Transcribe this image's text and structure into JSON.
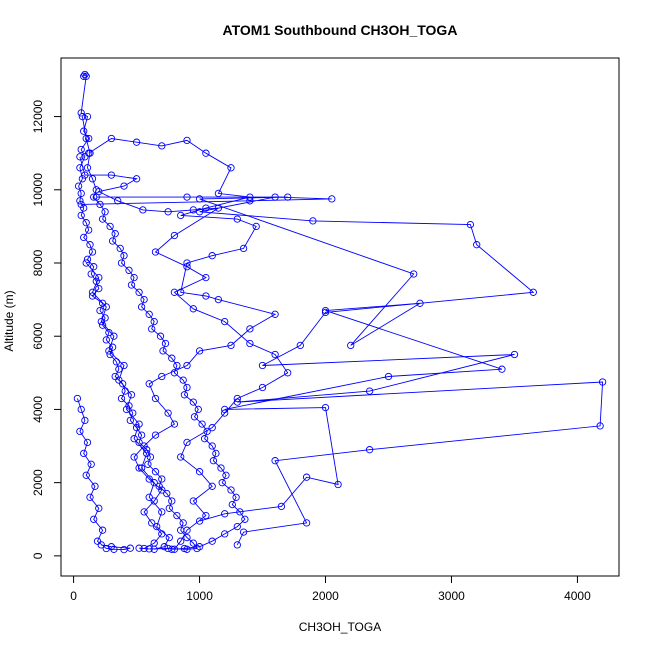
{
  "chart_data": {
    "type": "scatter",
    "title": "ATOM1 Southbound CH3OH_TOGA",
    "xlabel": "CH3OH_TOGA",
    "ylabel": "Altitude (m)",
    "xlim": [
      -100,
      4330
    ],
    "ylim": [
      -550,
      13600
    ],
    "xticks": [
      0,
      1000,
      2000,
      3000,
      4000
    ],
    "yticks": [
      0,
      2000,
      4000,
      6000,
      8000,
      10000,
      12000
    ],
    "xtick_labels": [
      "0",
      "1000",
      "2000",
      "3000",
      "4000"
    ],
    "ytick_labels": [
      "0",
      "2000",
      "4000",
      "6000",
      "8000",
      "10000",
      "12000"
    ],
    "marker": "open-circle",
    "line": true,
    "color": "#0000ff",
    "series": [
      {
        "points": [
          [
            80,
            13100
          ],
          [
            90,
            13150
          ],
          [
            100,
            13100
          ],
          [
            60,
            12100
          ],
          [
            110,
            12000
          ],
          [
            80,
            11600
          ],
          [
            120,
            11400
          ],
          [
            60,
            11100
          ],
          [
            90,
            10900
          ],
          [
            50,
            10600
          ],
          [
            70,
            10300
          ],
          [
            40,
            10100
          ],
          [
            60,
            9900
          ],
          [
            50,
            9700
          ],
          [
            80,
            9500
          ],
          [
            60,
            9300
          ],
          [
            100,
            9100
          ],
          [
            120,
            8900
          ],
          [
            80,
            8700
          ],
          [
            130,
            8500
          ],
          [
            150,
            8300
          ],
          [
            110,
            8100
          ],
          [
            160,
            7900
          ],
          [
            140,
            7700
          ],
          [
            180,
            7500
          ],
          [
            200,
            7300
          ],
          [
            150,
            7100
          ],
          [
            230,
            6900
          ],
          [
            210,
            6700
          ],
          [
            250,
            6500
          ],
          [
            230,
            6300
          ],
          [
            280,
            6100
          ],
          [
            260,
            5900
          ],
          [
            310,
            5700
          ],
          [
            290,
            5500
          ],
          [
            340,
            5300
          ],
          [
            360,
            5100
          ],
          [
            330,
            4900
          ],
          [
            390,
            4700
          ],
          [
            410,
            4500
          ],
          [
            380,
            4300
          ],
          [
            440,
            4100
          ],
          [
            470,
            3900
          ],
          [
            450,
            3700
          ],
          [
            500,
            3500
          ],
          [
            540,
            3300
          ],
          [
            520,
            3100
          ],
          [
            580,
            2900
          ],
          [
            610,
            2700
          ],
          [
            590,
            2500
          ],
          [
            650,
            2300
          ],
          [
            700,
            2100
          ],
          [
            680,
            1900
          ],
          [
            740,
            1700
          ],
          [
            780,
            1500
          ],
          [
            760,
            1300
          ],
          [
            820,
            1100
          ],
          [
            870,
            900
          ],
          [
            850,
            700
          ],
          [
            900,
            500
          ],
          [
            950,
            350
          ],
          [
            980,
            200
          ],
          [
            900,
            180
          ],
          [
            750,
            200
          ],
          [
            600,
            190
          ],
          [
            520,
            210
          ]
        ]
      },
      {
        "points": [
          [
            70,
            12000
          ],
          [
            100,
            11400
          ],
          [
            130,
            11000
          ],
          [
            110,
            10600
          ],
          [
            150,
            10300
          ],
          [
            180,
            10000
          ],
          [
            160,
            9800
          ],
          [
            210,
            9600
          ],
          [
            250,
            9400
          ],
          [
            230,
            9200
          ],
          [
            290,
            9000
          ],
          [
            330,
            8800
          ],
          [
            310,
            8600
          ],
          [
            370,
            8400
          ],
          [
            400,
            8200
          ],
          [
            380,
            8000
          ],
          [
            440,
            7800
          ],
          [
            480,
            7600
          ],
          [
            460,
            7400
          ],
          [
            520,
            7200
          ],
          [
            560,
            7000
          ],
          [
            540,
            6800
          ],
          [
            600,
            6600
          ],
          [
            640,
            6400
          ],
          [
            620,
            6200
          ],
          [
            690,
            6000
          ],
          [
            730,
            5800
          ],
          [
            710,
            5600
          ],
          [
            780,
            5400
          ],
          [
            820,
            5200
          ],
          [
            800,
            5000
          ],
          [
            870,
            4800
          ],
          [
            900,
            4600
          ],
          [
            880,
            4400
          ],
          [
            950,
            4200
          ],
          [
            990,
            4000
          ],
          [
            960,
            3800
          ],
          [
            1020,
            3600
          ],
          [
            1060,
            3400
          ],
          [
            1040,
            3200
          ],
          [
            1100,
            3000
          ],
          [
            1130,
            2800
          ],
          [
            1110,
            2600
          ],
          [
            1170,
            2400
          ],
          [
            1210,
            2200
          ],
          [
            1180,
            2000
          ],
          [
            1250,
            1800
          ],
          [
            1290,
            1600
          ],
          [
            1260,
            1400
          ],
          [
            1320,
            1200
          ],
          [
            1360,
            1000
          ],
          [
            1300,
            800
          ],
          [
            1200,
            600
          ],
          [
            1100,
            400
          ],
          [
            1000,
            250
          ],
          [
            880,
            200
          ],
          [
            780,
            180
          ]
        ]
      },
      {
        "points": [
          [
            60,
            9600
          ],
          [
            1400,
            9700
          ],
          [
            2050,
            9750
          ],
          [
            1600,
            9800
          ],
          [
            1000,
            9400
          ],
          [
            1900,
            9150
          ],
          [
            3150,
            9050
          ],
          [
            3200,
            8500
          ],
          [
            3650,
            7200
          ],
          [
            2000,
            6650
          ],
          [
            1800,
            5750
          ],
          [
            1500,
            5200
          ],
          [
            3500,
            5500
          ],
          [
            2350,
            4500
          ],
          [
            1300,
            4200
          ],
          [
            4200,
            4750
          ],
          [
            4180,
            3550
          ],
          [
            2350,
            2900
          ],
          [
            1600,
            2600
          ],
          [
            1850,
            900
          ],
          [
            1350,
            650
          ],
          [
            1300,
            300
          ]
        ]
      },
      {
        "points": [
          [
            180,
            9800
          ],
          [
            900,
            9800
          ],
          [
            1700,
            9800
          ],
          [
            1000,
            9750
          ],
          [
            2700,
            7700
          ],
          [
            2200,
            5750
          ],
          [
            2750,
            6900
          ],
          [
            2000,
            6700
          ],
          [
            3400,
            5100
          ],
          [
            2500,
            4900
          ],
          [
            1200,
            4000
          ],
          [
            2000,
            4050
          ],
          [
            2100,
            1950
          ],
          [
            1850,
            2150
          ],
          [
            1650,
            1350
          ],
          [
            1200,
            1150
          ],
          [
            1000,
            950
          ]
        ]
      },
      {
        "points": [
          [
            30,
            4300
          ],
          [
            60,
            4000
          ],
          [
            90,
            3700
          ],
          [
            50,
            3400
          ],
          [
            110,
            3100
          ],
          [
            80,
            2800
          ],
          [
            140,
            2500
          ],
          [
            100,
            2200
          ],
          [
            170,
            1900
          ],
          [
            130,
            1600
          ],
          [
            200,
            1300
          ],
          [
            160,
            1000
          ],
          [
            230,
            700
          ],
          [
            190,
            400
          ],
          [
            260,
            200
          ],
          [
            320,
            180
          ],
          [
            400,
            170
          ],
          [
            450,
            210
          ],
          [
            300,
            250
          ],
          [
            220,
            300
          ]
        ]
      },
      {
        "points": [
          [
            120,
            11000
          ],
          [
            300,
            11400
          ],
          [
            500,
            11300
          ],
          [
            700,
            11200
          ],
          [
            900,
            11350
          ],
          [
            1050,
            11000
          ],
          [
            1250,
            10600
          ],
          [
            1150,
            9900
          ],
          [
            1400,
            9800
          ],
          [
            1050,
            9500
          ],
          [
            850,
            9300
          ],
          [
            1300,
            9200
          ],
          [
            1450,
            9000
          ],
          [
            1350,
            8400
          ],
          [
            1100,
            8200
          ],
          [
            900,
            8000
          ],
          [
            850,
            7200
          ],
          [
            1050,
            7100
          ],
          [
            1150,
            7000
          ],
          [
            1600,
            6600
          ],
          [
            1400,
            6200
          ],
          [
            1250,
            5750
          ],
          [
            1000,
            5600
          ],
          [
            900,
            5200
          ],
          [
            700,
            4900
          ],
          [
            600,
            4700
          ],
          [
            650,
            4300
          ],
          [
            750,
            3900
          ],
          [
            800,
            3600
          ],
          [
            650,
            3300
          ],
          [
            560,
            3000
          ],
          [
            480,
            2700
          ],
          [
            520,
            2400
          ],
          [
            600,
            2100
          ],
          [
            700,
            1800
          ],
          [
            640,
            1500
          ],
          [
            560,
            1200
          ],
          [
            620,
            900
          ],
          [
            700,
            600
          ],
          [
            640,
            350
          ],
          [
            560,
            200
          ]
        ]
      },
      {
        "points": [
          [
            100,
            8000
          ],
          [
            200,
            7600
          ],
          [
            150,
            7200
          ],
          [
            260,
            6800
          ],
          [
            220,
            6400
          ],
          [
            320,
            6000
          ],
          [
            280,
            5600
          ],
          [
            400,
            5200
          ],
          [
            360,
            4800
          ],
          [
            460,
            4400
          ],
          [
            420,
            4000
          ],
          [
            520,
            3600
          ],
          [
            480,
            3200
          ],
          [
            580,
            2800
          ],
          [
            540,
            2400
          ],
          [
            640,
            2000
          ],
          [
            600,
            1600
          ],
          [
            700,
            1200
          ],
          [
            660,
            800
          ],
          [
            760,
            500
          ],
          [
            720,
            250
          ],
          [
            640,
            180
          ]
        ]
      },
      {
        "points": [
          [
            50,
            10900
          ],
          [
            90,
            10400
          ],
          [
            300,
            10400
          ],
          [
            500,
            10300
          ],
          [
            400,
            10100
          ],
          [
            200,
            9950
          ],
          [
            350,
            9700
          ],
          [
            550,
            9450
          ],
          [
            750,
            9400
          ],
          [
            950,
            9450
          ],
          [
            1150,
            9500
          ],
          [
            800,
            8750
          ],
          [
            650,
            8300
          ],
          [
            900,
            7900
          ],
          [
            1050,
            7600
          ],
          [
            800,
            7200
          ],
          [
            950,
            6750
          ],
          [
            1200,
            6400
          ],
          [
            1400,
            5800
          ],
          [
            1600,
            5500
          ],
          [
            1700,
            5000
          ],
          [
            1500,
            4600
          ],
          [
            1300,
            4300
          ],
          [
            1200,
            3900
          ],
          [
            1100,
            3500
          ],
          [
            900,
            3100
          ],
          [
            850,
            2700
          ],
          [
            1000,
            2300
          ],
          [
            1100,
            1900
          ],
          [
            950,
            1500
          ],
          [
            1050,
            1100
          ],
          [
            900,
            700
          ],
          [
            850,
            400
          ],
          [
            800,
            180
          ]
        ]
      }
    ]
  }
}
